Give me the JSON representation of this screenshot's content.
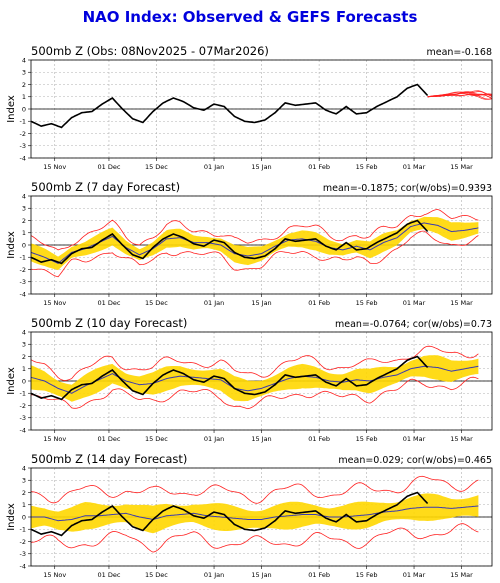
{
  "main_title": "NAO Index: Observed & GEFS Forecasts",
  "colors": {
    "title": "#0000dd",
    "observed": "#000000",
    "spread": "#ffd700",
    "ensemble_mean": "#3a3ab0",
    "bounds": "#ff2020"
  },
  "chart_data": [
    {
      "type": "line",
      "title": "500mb Z (Obs: 08Nov2025 - 07Mar2026)",
      "stats": "mean=-0.168",
      "ylabel": "Index",
      "ylim": [
        -4,
        4
      ],
      "yticks": [
        "-4",
        "-3",
        "-2",
        "-1",
        "0",
        "1",
        "2",
        "3",
        "4"
      ],
      "xticks": [
        "15 Nov",
        "01 Dec",
        "15 Dec",
        "01 Jan",
        "15 Jan",
        "01 Feb",
        "15 Feb",
        "01 Mar",
        "15 Mar"
      ],
      "grid": true,
      "x_day_range": [
        0,
        136
      ],
      "observed": {
        "days": [
          0,
          3,
          6,
          9,
          12,
          15,
          18,
          21,
          24,
          27,
          30,
          33,
          36,
          39,
          42,
          45,
          48,
          51,
          54,
          57,
          60,
          63,
          66,
          69,
          72,
          75,
          78,
          81,
          84,
          87,
          90,
          93,
          96,
          99,
          102,
          105,
          108,
          111,
          114,
          117
        ],
        "values": [
          -1.0,
          -1.4,
          -1.2,
          -1.5,
          -0.7,
          -0.3,
          -0.2,
          0.4,
          0.9,
          0.0,
          -0.8,
          -1.1,
          -0.2,
          0.5,
          0.9,
          0.6,
          0.1,
          -0.1,
          0.4,
          0.2,
          -0.6,
          -1.0,
          -1.1,
          -0.9,
          -0.3,
          0.5,
          0.3,
          0.4,
          0.5,
          -0.1,
          -0.4,
          0.2,
          -0.4,
          -0.3,
          0.2,
          0.6,
          1.0,
          1.7,
          2.0,
          1.1
        ]
      },
      "forecast_ensemble": {
        "start_day": 117,
        "end_day": 136,
        "center": [
          1.0,
          1.1,
          1.2,
          1.3,
          1.2,
          1.0
        ],
        "spread": 0.5
      }
    },
    {
      "type": "line",
      "title": "500mb Z (7 day Forecast)",
      "stats": "mean=-0.1875; cor(w/obs)=0.9393",
      "ylabel": "Index",
      "ylim": [
        -4,
        4
      ],
      "yticks": [
        "-4",
        "-3",
        "-2",
        "-1",
        "0",
        "1",
        "2",
        "3",
        "4"
      ],
      "xticks": [
        "15 Nov",
        "01 Dec",
        "15 Dec",
        "01 Jan",
        "15 Jan",
        "01 Feb",
        "15 Feb",
        "01 Mar",
        "15 Mar"
      ],
      "grid": true,
      "x_day_range": [
        0,
        136
      ],
      "observed_end_day": 117,
      "forecast_days": [
        0,
        4,
        8,
        12,
        16,
        20,
        24,
        28,
        32,
        36,
        40,
        44,
        48,
        52,
        56,
        60,
        64,
        68,
        72,
        76,
        80,
        84,
        88,
        92,
        96,
        100,
        104,
        108,
        112,
        116,
        120,
        124,
        128,
        132
      ],
      "ensemble_mean": [
        -0.6,
        -1.0,
        -1.5,
        -0.6,
        -0.3,
        0.2,
        0.7,
        -0.2,
        -0.8,
        -0.3,
        0.5,
        0.6,
        0.2,
        0.2,
        0.0,
        -0.7,
        -0.9,
        -0.7,
        -0.1,
        0.4,
        0.5,
        0.3,
        -0.2,
        -0.4,
        -0.1,
        -0.4,
        0.2,
        0.6,
        1.5,
        1.8,
        1.6,
        1.1,
        1.2,
        1.4
      ],
      "spread_half_width": 0.6,
      "bound_half_width": 1.0
    },
    {
      "type": "line",
      "title": "500mb Z (10 day Forecast)",
      "stats": "mean=-0.0764; cor(w/obs)=0.73",
      "ylabel": "Index",
      "ylim": [
        -4,
        4
      ],
      "yticks": [
        "-4",
        "-3",
        "-2",
        "-1",
        "0",
        "1",
        "2",
        "3",
        "4"
      ],
      "xticks": [
        "15 Nov",
        "01 Dec",
        "15 Dec",
        "01 Jan",
        "15 Jan",
        "01 Feb",
        "15 Feb",
        "01 Mar",
        "15 Mar"
      ],
      "grid": true,
      "x_day_range": [
        0,
        136
      ],
      "observed_end_day": 117,
      "forecast_days": [
        0,
        4,
        8,
        12,
        16,
        20,
        24,
        28,
        32,
        36,
        40,
        44,
        48,
        52,
        56,
        60,
        64,
        68,
        72,
        76,
        80,
        84,
        88,
        92,
        96,
        100,
        104,
        108,
        112,
        116,
        120,
        124,
        128,
        132
      ],
      "ensemble_mean": [
        0.3,
        0.0,
        -0.6,
        -1.0,
        -0.4,
        0.1,
        0.6,
        0.0,
        -0.3,
        -0.2,
        0.2,
        0.4,
        0.3,
        0.2,
        0.1,
        -0.6,
        -0.8,
        -0.6,
        -0.2,
        0.2,
        0.4,
        0.3,
        0.0,
        -0.1,
        0.1,
        0.0,
        0.3,
        0.5,
        1.0,
        1.2,
        1.1,
        0.8,
        1.0,
        1.2
      ],
      "spread_half_width": 0.8,
      "bound_half_width": 1.3
    },
    {
      "type": "line",
      "title": "500mb Z (14 day Forecast)",
      "stats": "mean=0.029; cor(w/obs)=0.465",
      "ylabel": "Index",
      "ylim": [
        -4,
        4
      ],
      "yticks": [
        "-4",
        "-3",
        "-2",
        "-1",
        "0",
        "1",
        "2",
        "3",
        "4"
      ],
      "xticks": [
        "15 Nov",
        "01 Dec",
        "15 Dec",
        "01 Jan",
        "15 Jan",
        "01 Feb",
        "15 Feb",
        "01 Mar",
        "15 Mar"
      ],
      "grid": true,
      "x_day_range": [
        0,
        136
      ],
      "observed_end_day": 117,
      "forecast_days": [
        0,
        4,
        8,
        12,
        16,
        20,
        24,
        28,
        32,
        36,
        40,
        44,
        48,
        52,
        56,
        60,
        64,
        68,
        72,
        76,
        80,
        84,
        88,
        92,
        96,
        100,
        104,
        108,
        112,
        116,
        120,
        124,
        128,
        132
      ],
      "ensemble_mean": [
        0.0,
        0.0,
        -0.3,
        -0.2,
        0.1,
        0.1,
        0.2,
        0.3,
        0.0,
        -0.2,
        0.1,
        0.2,
        0.3,
        0.1,
        0.0,
        -0.1,
        -0.2,
        -0.2,
        0.0,
        0.1,
        0.2,
        0.2,
        0.0,
        0.0,
        0.1,
        0.2,
        0.4,
        0.5,
        0.7,
        0.8,
        0.8,
        0.7,
        0.8,
        0.9
      ],
      "spread_half_width": 0.9,
      "bound_half_width": 2.0
    }
  ]
}
